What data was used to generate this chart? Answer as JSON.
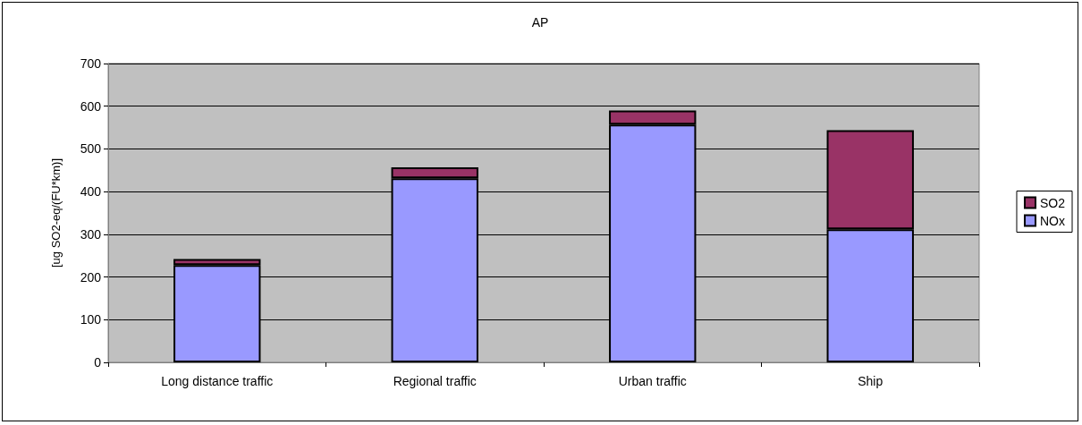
{
  "chart_data": {
    "type": "bar",
    "title": "AP",
    "ylabel": "[ug SO2-eq/(FU*km)]",
    "categories": [
      "Long distance traffic",
      "Regional traffic",
      "Urban traffic",
      "Ship"
    ],
    "stacked": true,
    "series": [
      {
        "name": "NOx",
        "color": "#9999ff",
        "values": [
          228,
          431,
          557,
          312
        ]
      },
      {
        "name": "SO2",
        "color": "#993366",
        "values": [
          14,
          26,
          33,
          232
        ]
      }
    ],
    "ylim": [
      0,
      700
    ],
    "yticks": [
      0,
      100,
      200,
      300,
      400,
      500,
      600,
      700
    ],
    "grid": "y",
    "legend": "right"
  }
}
